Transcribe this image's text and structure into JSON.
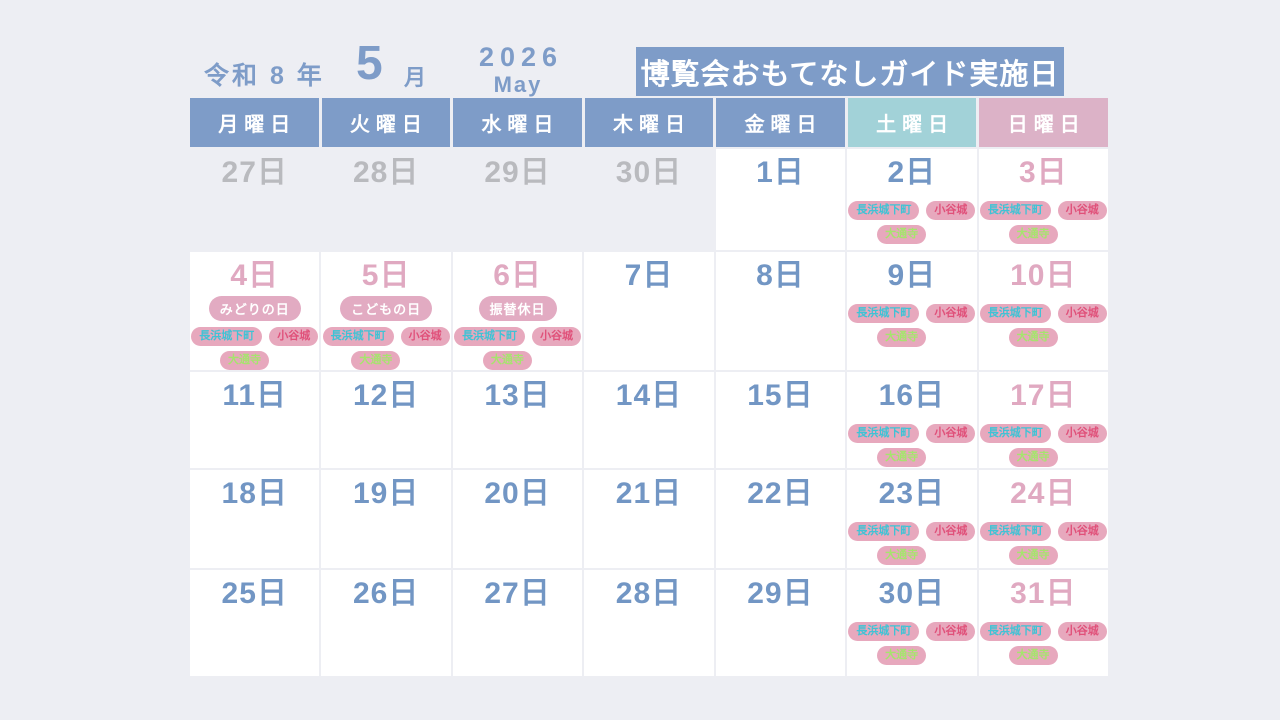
{
  "header": {
    "era_year_label": "令和 8 年",
    "month_number": "5",
    "month_unit": "月",
    "year_western": "2026",
    "month_english": "May",
    "banner_title": "博覧会おもてなしガイド実施日"
  },
  "weekday_header": [
    {
      "label": "月曜日",
      "type": "weekday"
    },
    {
      "label": "火曜日",
      "type": "weekday"
    },
    {
      "label": "水曜日",
      "type": "weekday"
    },
    {
      "label": "木曜日",
      "type": "weekday"
    },
    {
      "label": "金曜日",
      "type": "weekday"
    },
    {
      "label": "土曜日",
      "type": "saturday"
    },
    {
      "label": "日曜日",
      "type": "sunday"
    }
  ],
  "guide_sites": [
    {
      "key": "nagahama-jokamachi",
      "label": "長浜城下町",
      "text_color": "#3fc3d5"
    },
    {
      "key": "odani-castle",
      "label": "小谷城",
      "text_color": "#e0517a"
    },
    {
      "key": "daitsuji",
      "label": "大通寺",
      "text_color": "#a6e46e"
    }
  ],
  "calendar": {
    "weeks": [
      [
        {
          "label": "27日",
          "tone": "prev-month"
        },
        {
          "label": "28日",
          "tone": "prev-month"
        },
        {
          "label": "29日",
          "tone": "prev-month"
        },
        {
          "label": "30日",
          "tone": "prev-month"
        },
        {
          "label": "1日",
          "tone": "weekday"
        },
        {
          "label": "2日",
          "tone": "saturday",
          "guides": true
        },
        {
          "label": "3日",
          "tone": "sunday",
          "guides": true
        }
      ],
      [
        {
          "label": "4日",
          "tone": "holiday",
          "holiday": "みどりの日",
          "guides": true
        },
        {
          "label": "5日",
          "tone": "holiday",
          "holiday": "こどもの日",
          "guides": true
        },
        {
          "label": "6日",
          "tone": "holiday",
          "holiday": "振替休日",
          "guides": true
        },
        {
          "label": "7日",
          "tone": "weekday"
        },
        {
          "label": "8日",
          "tone": "weekday"
        },
        {
          "label": "9日",
          "tone": "saturday",
          "guides": true
        },
        {
          "label": "10日",
          "tone": "sunday",
          "guides": true
        }
      ],
      [
        {
          "label": "11日",
          "tone": "weekday"
        },
        {
          "label": "12日",
          "tone": "weekday"
        },
        {
          "label": "13日",
          "tone": "weekday"
        },
        {
          "label": "14日",
          "tone": "weekday"
        },
        {
          "label": "15日",
          "tone": "weekday"
        },
        {
          "label": "16日",
          "tone": "saturday",
          "guides": true
        },
        {
          "label": "17日",
          "tone": "sunday",
          "guides": true
        }
      ],
      [
        {
          "label": "18日",
          "tone": "weekday"
        },
        {
          "label": "19日",
          "tone": "weekday"
        },
        {
          "label": "20日",
          "tone": "weekday"
        },
        {
          "label": "21日",
          "tone": "weekday"
        },
        {
          "label": "22日",
          "tone": "weekday"
        },
        {
          "label": "23日",
          "tone": "saturday",
          "guides": true
        },
        {
          "label": "24日",
          "tone": "sunday",
          "guides": true
        }
      ],
      [
        {
          "label": "25日",
          "tone": "weekday"
        },
        {
          "label": "26日",
          "tone": "weekday"
        },
        {
          "label": "27日",
          "tone": "weekday"
        },
        {
          "label": "28日",
          "tone": "weekday"
        },
        {
          "label": "29日",
          "tone": "weekday"
        },
        {
          "label": "30日",
          "tone": "saturday",
          "guides": true
        },
        {
          "label": "31日",
          "tone": "sunday",
          "guides": true
        }
      ]
    ]
  },
  "colors": {
    "page-bg": "#edeef3",
    "header-blue": "#7e9cc8",
    "header-teal": "#a2d2d8",
    "header-pink": "#dcb2c7",
    "date-blue": "#7296c4",
    "date-pink": "#e0a9c1",
    "date-gray": "#b9babe",
    "badge-bg": "#e7a8bd",
    "holiday-badge-bg": "#e2abc2",
    "cell-bg": "#ffffff",
    "banner-text": "#ffffff"
  }
}
